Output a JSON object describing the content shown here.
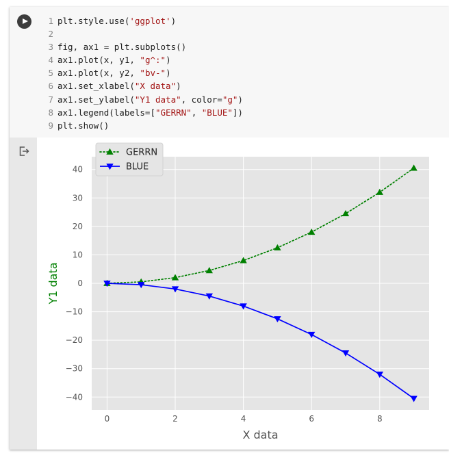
{
  "code_lines": [
    {
      "n": "1",
      "tokens": [
        {
          "t": "plt.style.use(",
          "c": "plain"
        },
        {
          "t": "'ggplot'",
          "c": "str"
        },
        {
          "t": ")",
          "c": "plain"
        }
      ]
    },
    {
      "n": "2",
      "tokens": []
    },
    {
      "n": "3",
      "tokens": [
        {
          "t": "fig, ax1 = plt.subplots()",
          "c": "plain"
        }
      ]
    },
    {
      "n": "4",
      "tokens": [
        {
          "t": "ax1.plot(x, y1, ",
          "c": "plain"
        },
        {
          "t": "\"g^:\"",
          "c": "str"
        },
        {
          "t": ")",
          "c": "plain"
        }
      ]
    },
    {
      "n": "5",
      "tokens": [
        {
          "t": "ax1.plot(x, y2, ",
          "c": "plain"
        },
        {
          "t": "\"bv-\"",
          "c": "str"
        },
        {
          "t": ")",
          "c": "plain"
        }
      ]
    },
    {
      "n": "6",
      "tokens": [
        {
          "t": "ax1.set_xlabel(",
          "c": "plain"
        },
        {
          "t": "\"X data\"",
          "c": "str"
        },
        {
          "t": ")",
          "c": "plain"
        }
      ]
    },
    {
      "n": "7",
      "tokens": [
        {
          "t": "ax1.set_ylabel(",
          "c": "plain"
        },
        {
          "t": "\"Y1 data\"",
          "c": "str"
        },
        {
          "t": ", color=",
          "c": "plain"
        },
        {
          "t": "\"g\"",
          "c": "str"
        },
        {
          "t": ")",
          "c": "plain"
        }
      ]
    },
    {
      "n": "8",
      "tokens": [
        {
          "t": "ax1.legend(labels=[",
          "c": "plain"
        },
        {
          "t": "\"GERRN\"",
          "c": "str"
        },
        {
          "t": ", ",
          "c": "plain"
        },
        {
          "t": "\"BLUE\"",
          "c": "str"
        },
        {
          "t": "])",
          "c": "plain"
        }
      ]
    },
    {
      "n": "9",
      "tokens": [
        {
          "t": "plt.show()",
          "c": "plain"
        }
      ]
    }
  ],
  "icons": {
    "run": "play-circle-icon",
    "output": "output-arrow-icon"
  },
  "colors": {
    "string": "#a31515",
    "green_series": "#008000",
    "blue_series": "#0000ff",
    "plot_bg": "#e5e5e5",
    "grid": "#ffffff"
  },
  "chart_data": {
    "type": "line",
    "style": "ggplot",
    "xlabel": "X data",
    "ylabel": "Y1 data",
    "ylabel_color": "#008000",
    "xlim": [
      -0.45,
      9.45
    ],
    "ylim": [
      -44.5,
      44.5
    ],
    "xticks": [
      0,
      2,
      4,
      6,
      8
    ],
    "yticks": [
      -40,
      -30,
      -20,
      -10,
      0,
      10,
      20,
      30,
      40
    ],
    "ytick_labels": [
      "−40",
      "−30",
      "−20",
      "−10",
      "0",
      "10",
      "20",
      "30",
      "40"
    ],
    "grid": true,
    "legend": "upper-left",
    "x": [
      0,
      1,
      2,
      3,
      4,
      5,
      6,
      7,
      8,
      9
    ],
    "series": [
      {
        "name": "GERRN",
        "color": "#008000",
        "marker": "triangle-up",
        "linestyle": "dotted",
        "values": [
          0,
          0.5,
          2,
          4.5,
          8,
          12.5,
          18,
          24.5,
          32,
          40.5
        ]
      },
      {
        "name": "BLUE",
        "color": "#0000ff",
        "marker": "triangle-down",
        "linestyle": "solid",
        "values": [
          0,
          -0.5,
          -2,
          -4.5,
          -8,
          -12.5,
          -18,
          -24.5,
          -32,
          -40.5
        ]
      }
    ]
  }
}
